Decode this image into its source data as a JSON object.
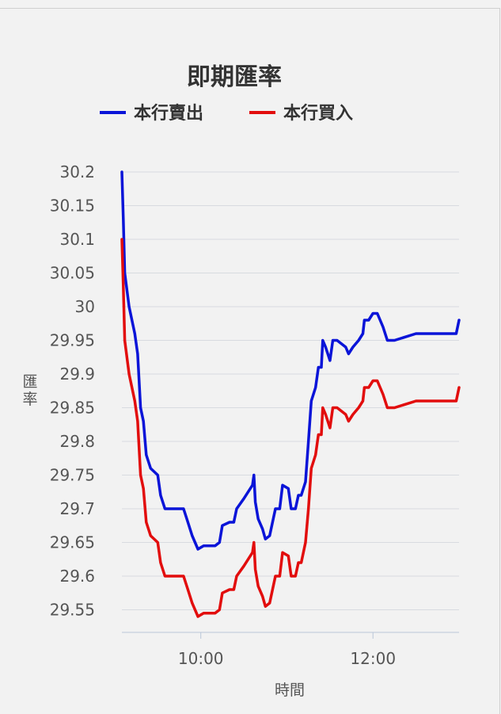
{
  "chart_data": {
    "type": "line",
    "title": "即期匯率",
    "xlabel": "時間",
    "ylabel": "匯率",
    "ylim": [
      29.5,
      30.2
    ],
    "yticks": [
      "30.2",
      "30.15",
      "30.1",
      "30.05",
      "30",
      "29.95",
      "29.9",
      "29.85",
      "29.8",
      "29.75",
      "29.7",
      "29.65",
      "29.6",
      "29.55"
    ],
    "xticks": [
      "10:00",
      "12:00"
    ],
    "xlim": [
      "09:05",
      "13:00"
    ],
    "grid": true,
    "legend_position": "top",
    "series": [
      {
        "name": "本行賣出",
        "color": "#0a14d8",
        "points": [
          [
            "09:05",
            30.2
          ],
          [
            "09:06",
            30.13
          ],
          [
            "09:07",
            30.05
          ],
          [
            "09:10",
            30.0
          ],
          [
            "09:14",
            29.96
          ],
          [
            "09:16",
            29.93
          ],
          [
            "09:18",
            29.85
          ],
          [
            "09:20",
            29.83
          ],
          [
            "09:22",
            29.78
          ],
          [
            "09:25",
            29.76
          ],
          [
            "09:30",
            29.75
          ],
          [
            "09:32",
            29.72
          ],
          [
            "09:35",
            29.7
          ],
          [
            "09:48",
            29.7
          ],
          [
            "09:51",
            29.68
          ],
          [
            "09:54",
            29.66
          ],
          [
            "09:58",
            29.64
          ],
          [
            "10:02",
            29.645
          ],
          [
            "10:10",
            29.645
          ],
          [
            "10:13",
            29.65
          ],
          [
            "10:15",
            29.675
          ],
          [
            "10:20",
            29.68
          ],
          [
            "10:23",
            29.68
          ],
          [
            "10:25",
            29.7
          ],
          [
            "10:30",
            29.715
          ],
          [
            "10:36",
            29.735
          ],
          [
            "10:37",
            29.75
          ],
          [
            "10:38",
            29.71
          ],
          [
            "10:40",
            29.685
          ],
          [
            "10:43",
            29.67
          ],
          [
            "10:45",
            29.655
          ],
          [
            "10:48",
            29.66
          ],
          [
            "10:52",
            29.7
          ],
          [
            "10:55",
            29.7
          ],
          [
            "10:57",
            29.735
          ],
          [
            "11:01",
            29.73
          ],
          [
            "11:03",
            29.7
          ],
          [
            "11:06",
            29.7
          ],
          [
            "11:08",
            29.72
          ],
          [
            "11:10",
            29.72
          ],
          [
            "11:13",
            29.74
          ],
          [
            "11:15",
            29.8
          ],
          [
            "11:17",
            29.86
          ],
          [
            "11:20",
            29.88
          ],
          [
            "11:22",
            29.91
          ],
          [
            "11:24",
            29.91
          ],
          [
            "11:25",
            29.95
          ],
          [
            "11:27",
            29.94
          ],
          [
            "11:30",
            29.92
          ],
          [
            "11:32",
            29.95
          ],
          [
            "11:35",
            29.95
          ],
          [
            "11:41",
            29.94
          ],
          [
            "11:43",
            29.93
          ],
          [
            "11:46",
            29.94
          ],
          [
            "11:50",
            29.95
          ],
          [
            "11:53",
            29.96
          ],
          [
            "11:54",
            29.98
          ],
          [
            "11:57",
            29.98
          ],
          [
            "12:00",
            29.99
          ],
          [
            "12:03",
            29.99
          ],
          [
            "12:07",
            29.97
          ],
          [
            "12:10",
            29.95
          ],
          [
            "12:15",
            29.95
          ],
          [
            "12:30",
            29.96
          ],
          [
            "12:55",
            29.96
          ],
          [
            "12:58",
            29.96
          ],
          [
            "13:00",
            29.98
          ]
        ]
      },
      {
        "name": "本行買入",
        "color": "#e20d0d",
        "points": [
          [
            "09:05",
            30.1
          ],
          [
            "09:06",
            30.03
          ],
          [
            "09:07",
            29.95
          ],
          [
            "09:10",
            29.9
          ],
          [
            "09:14",
            29.86
          ],
          [
            "09:16",
            29.83
          ],
          [
            "09:18",
            29.75
          ],
          [
            "09:20",
            29.73
          ],
          [
            "09:22",
            29.68
          ],
          [
            "09:25",
            29.66
          ],
          [
            "09:30",
            29.65
          ],
          [
            "09:32",
            29.62
          ],
          [
            "09:35",
            29.6
          ],
          [
            "09:48",
            29.6
          ],
          [
            "09:51",
            29.58
          ],
          [
            "09:54",
            29.56
          ],
          [
            "09:58",
            29.54
          ],
          [
            "10:02",
            29.545
          ],
          [
            "10:10",
            29.545
          ],
          [
            "10:13",
            29.55
          ],
          [
            "10:15",
            29.575
          ],
          [
            "10:20",
            29.58
          ],
          [
            "10:23",
            29.58
          ],
          [
            "10:25",
            29.6
          ],
          [
            "10:30",
            29.615
          ],
          [
            "10:36",
            29.635
          ],
          [
            "10:37",
            29.65
          ],
          [
            "10:38",
            29.61
          ],
          [
            "10:40",
            29.585
          ],
          [
            "10:43",
            29.57
          ],
          [
            "10:45",
            29.555
          ],
          [
            "10:48",
            29.56
          ],
          [
            "10:52",
            29.6
          ],
          [
            "10:55",
            29.6
          ],
          [
            "10:57",
            29.635
          ],
          [
            "11:01",
            29.63
          ],
          [
            "11:03",
            29.6
          ],
          [
            "11:06",
            29.6
          ],
          [
            "11:08",
            29.62
          ],
          [
            "11:10",
            29.62
          ],
          [
            "11:13",
            29.65
          ],
          [
            "11:15",
            29.7
          ],
          [
            "11:17",
            29.76
          ],
          [
            "11:20",
            29.78
          ],
          [
            "11:22",
            29.81
          ],
          [
            "11:24",
            29.81
          ],
          [
            "11:25",
            29.85
          ],
          [
            "11:27",
            29.84
          ],
          [
            "11:30",
            29.82
          ],
          [
            "11:32",
            29.85
          ],
          [
            "11:35",
            29.85
          ],
          [
            "11:41",
            29.84
          ],
          [
            "11:43",
            29.83
          ],
          [
            "11:46",
            29.84
          ],
          [
            "11:50",
            29.85
          ],
          [
            "11:53",
            29.86
          ],
          [
            "11:54",
            29.88
          ],
          [
            "11:57",
            29.88
          ],
          [
            "12:00",
            29.89
          ],
          [
            "12:03",
            29.89
          ],
          [
            "12:07",
            29.87
          ],
          [
            "12:10",
            29.85
          ],
          [
            "12:15",
            29.85
          ],
          [
            "12:30",
            29.86
          ],
          [
            "12:55",
            29.86
          ],
          [
            "12:58",
            29.86
          ],
          [
            "13:00",
            29.88
          ]
        ]
      }
    ]
  }
}
